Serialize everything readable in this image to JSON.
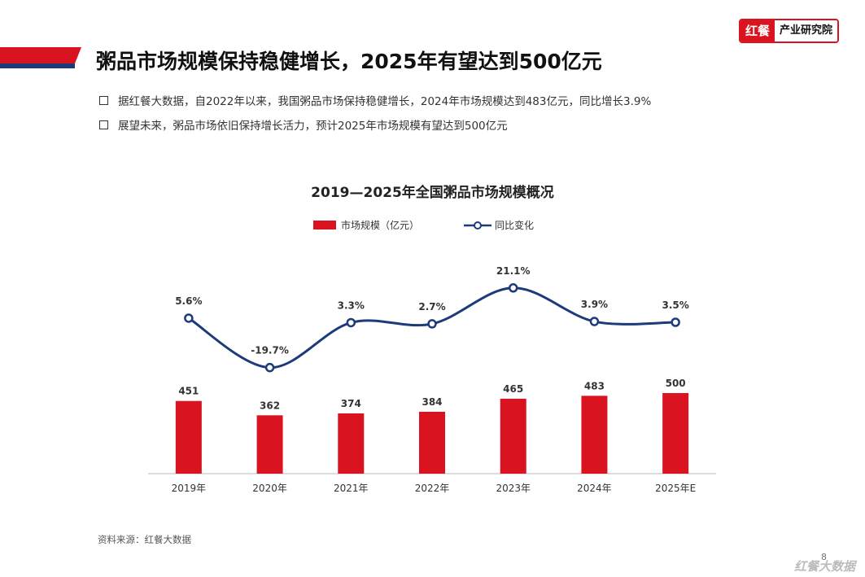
{
  "header": {
    "title": "粥品市场规模保持稳健增长，2025年有望达到500亿元",
    "logo_red": "红餐",
    "logo_text": "产业研究院"
  },
  "bullets": [
    "据红餐大数据，自2022年以来，我国粥品市场保持稳健增长，2024年市场规模达到483亿元，同比增长3.9%",
    "展望未来，粥品市场依旧保持增长活力，预计2025年市场规模有望达到500亿元"
  ],
  "source": "资料来源：红餐大数据",
  "page_number": "8",
  "footer_logo": "红餐大数据",
  "colors": {
    "bar": "#d91420",
    "line": "#1d3a7a",
    "accent": "#d91420"
  },
  "chart_data": {
    "type": "bar",
    "title": "2019—2025年全国粥品市场规模概况",
    "categories": [
      "2019年",
      "2020年",
      "2021年",
      "2022年",
      "2023年",
      "2024年",
      "2025年E"
    ],
    "series": [
      {
        "name": "市场规模（亿元）",
        "type": "bar",
        "values": [
          451,
          362,
          374,
          384,
          465,
          483,
          500
        ]
      },
      {
        "name": "同比变化",
        "type": "line",
        "values": [
          5.6,
          -19.7,
          3.3,
          2.7,
          21.1,
          3.9,
          3.5
        ],
        "labels": [
          "5.6%",
          "-19.7%",
          "3.3%",
          "2.7%",
          "21.1%",
          "3.9%",
          "3.5%"
        ]
      }
    ],
    "legend": "top-center"
  }
}
